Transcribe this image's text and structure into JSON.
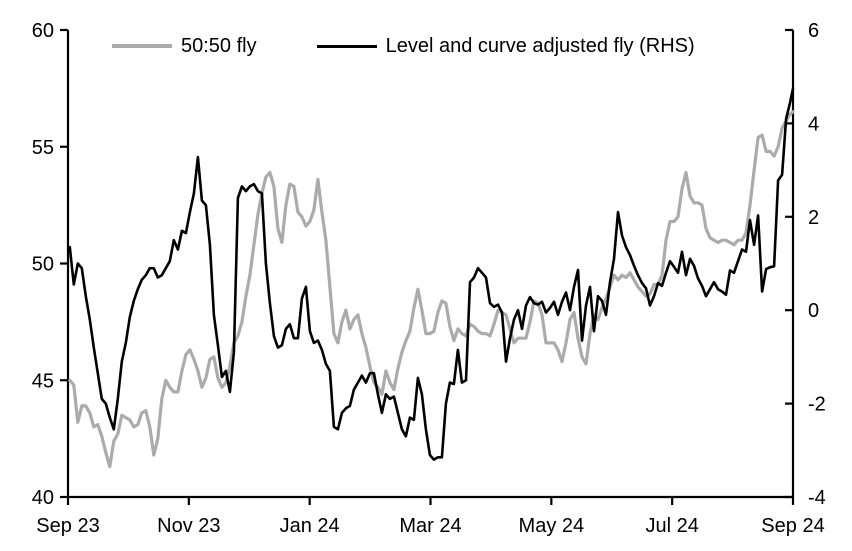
{
  "window": {
    "background": "#ffffff"
  },
  "legend": {
    "items": [
      {
        "label": "50:50 fly",
        "color": "#ababab"
      },
      {
        "label": "Level and curve adjusted fly (RHS)",
        "color": "#000000"
      }
    ]
  },
  "chart_data": {
    "type": "line",
    "title": "",
    "grid": false,
    "legend_position": "top-center",
    "x_axis": {
      "unit": "months-since-Sep-2023",
      "domain_months": [
        0,
        12
      ],
      "tick_months": [
        0,
        2,
        4,
        6,
        8,
        10,
        12
      ],
      "tick_labels": [
        "Sep 23",
        "Nov 23",
        "Jan 24",
        "Mar 24",
        "May 24",
        "Jul 24",
        "Sep 24"
      ]
    },
    "left_axis": {
      "range": [
        40,
        60
      ],
      "ticks": [
        60,
        55,
        50,
        45,
        40
      ],
      "tick_labels": [
        "60",
        "55",
        "50",
        "45",
        "40"
      ]
    },
    "right_axis": {
      "range": [
        -4,
        6
      ],
      "ticks": [
        6,
        4,
        2,
        0,
        -2,
        -4
      ],
      "tick_labels": [
        "6",
        "4",
        "2",
        "0",
        "-2",
        "-4"
      ]
    },
    "series": [
      {
        "name": "50:50 fly",
        "axis": "left",
        "color": "#ababab",
        "stroke_width": 3.2,
        "x_start_month": 0.03,
        "x_step_month": 0.06623,
        "values": [
          45,
          44.8,
          43.2,
          43.9,
          43.9,
          43.6,
          43,
          43.1,
          42.6,
          41.9,
          41.3,
          42.4,
          42.7,
          43.5,
          43.4,
          43.3,
          43,
          43.1,
          43.6,
          43.7,
          43,
          41.8,
          42.5,
          44.2,
          45,
          44.7,
          44.5,
          44.5,
          45.4,
          46.1,
          46.3,
          45.9,
          45.4,
          44.7,
          45.1,
          45.9,
          46,
          45.1,
          44.7,
          44.9,
          45.6,
          46.6,
          46.9,
          47.5,
          48.6,
          49.5,
          50.8,
          52.1,
          53,
          53.7,
          53.9,
          53.3,
          51.5,
          50.9,
          52.5,
          53.4,
          53.3,
          52.2,
          52,
          51.6,
          51.8,
          52.3,
          53.6,
          52.2,
          51,
          49,
          47,
          46.6,
          47.5,
          48,
          47.2,
          47.6,
          47.8,
          47,
          46.4,
          45.6,
          44.9,
          44.7,
          44.4,
          45.4,
          44.9,
          44.6,
          45.5,
          46.2,
          46.7,
          47.1,
          48.1,
          48.9,
          48,
          47,
          47,
          47.1,
          47.9,
          48.4,
          48.3,
          47.3,
          46.7,
          47.2,
          47,
          46.9,
          47.4,
          47.3,
          47.1,
          47,
          47,
          46.9,
          47.4,
          48,
          47.9,
          47.8,
          47.2,
          46.6,
          46.8,
          46.8,
          46.8,
          47.5,
          48.4,
          48.3,
          47.8,
          46.6,
          46.6,
          46.6,
          46.3,
          45.8,
          46.6,
          47.6,
          47.9,
          46.8,
          46,
          45.7,
          47,
          47.8,
          47.6,
          48.1,
          48.5,
          49,
          49.5,
          49.3,
          49.5,
          49.4,
          49.6,
          49.3,
          49,
          48.8,
          48.6,
          48.7,
          49.1,
          49.1,
          49.5,
          51,
          51.8,
          51.8,
          52,
          53.2,
          53.9,
          52.9,
          52.6,
          52.6,
          52.5,
          51.5,
          51.1,
          51,
          50.9,
          51,
          51,
          50.9,
          50.8,
          51,
          51,
          51.3,
          52.5,
          54,
          55.4,
          55.5,
          54.8,
          54.8,
          54.6,
          55,
          55.8,
          56.1,
          56.4,
          56.5
        ]
      },
      {
        "name": "Level and curve adjusted fly (RHS)",
        "axis": "right",
        "color": "#000000",
        "stroke_width": 2.6,
        "x_start_month": 0.03,
        "x_step_month": 0.06623,
        "values": [
          1.35,
          0.55,
          1,
          0.9,
          0.3,
          -0.2,
          -0.8,
          -1.35,
          -1.9,
          -2,
          -2.3,
          -2.55,
          -1.9,
          -1.1,
          -0.7,
          -0.15,
          0.2,
          0.45,
          0.65,
          0.75,
          0.9,
          0.9,
          0.7,
          0.75,
          0.9,
          1.05,
          1.5,
          1.3,
          1.7,
          1.65,
          2.1,
          2.5,
          3.28,
          2.35,
          2.25,
          1.4,
          -0.1,
          -0.75,
          -1.43,
          -1.3,
          -1.75,
          -0.9,
          2.4,
          2.65,
          2.55,
          2.65,
          2.7,
          2.55,
          2.5,
          1,
          0.15,
          -0.55,
          -0.8,
          -0.75,
          -0.4,
          -0.3,
          -0.6,
          -0.6,
          0.25,
          0.5,
          -0.45,
          -0.7,
          -0.65,
          -0.85,
          -1.15,
          -1.3,
          -2.5,
          -2.55,
          -2.2,
          -2.1,
          -2.05,
          -1.7,
          -1.55,
          -1.4,
          -1.55,
          -1.35,
          -1.35,
          -1.8,
          -2.2,
          -1.8,
          -1.9,
          -1.85,
          -2.2,
          -2.55,
          -2.7,
          -2.3,
          -2.35,
          -1.45,
          -1.8,
          -2.55,
          -3.1,
          -3.2,
          -3.15,
          -3.15,
          -2,
          -1.55,
          -1.58,
          -0.85,
          -1.55,
          -1.5,
          0.6,
          0.7,
          0.9,
          0.8,
          0.7,
          0.15,
          0.07,
          0.12,
          -0.05,
          -1.1,
          -0.6,
          -0.2,
          0,
          -0.4,
          0.1,
          0.28,
          0.15,
          0.12,
          0.18,
          -0.05,
          0.05,
          0.18,
          -0.1,
          0.18,
          0.38,
          0,
          0.5,
          0.86,
          -0.65,
          0.1,
          0.5,
          -0.45,
          0.3,
          0.2,
          -0.1,
          0.6,
          1.1,
          2.1,
          1.6,
          1.35,
          1.18,
          0.95,
          0.75,
          0.58,
          0.47,
          0.1,
          0.3,
          0.58,
          0.52,
          0.8,
          1.05,
          0.93,
          0.8,
          1.25,
          0.75,
          1.1,
          0.95,
          0.68,
          0.52,
          0.3,
          0.45,
          0.6,
          0.45,
          0.4,
          0.33,
          0.85,
          0.8,
          1.05,
          1.3,
          1.25,
          1.93,
          1.4,
          2.03,
          0.4,
          0.88,
          0.92,
          0.94,
          2.78,
          2.9,
          4.1,
          4.45,
          4.75
        ]
      }
    ]
  }
}
